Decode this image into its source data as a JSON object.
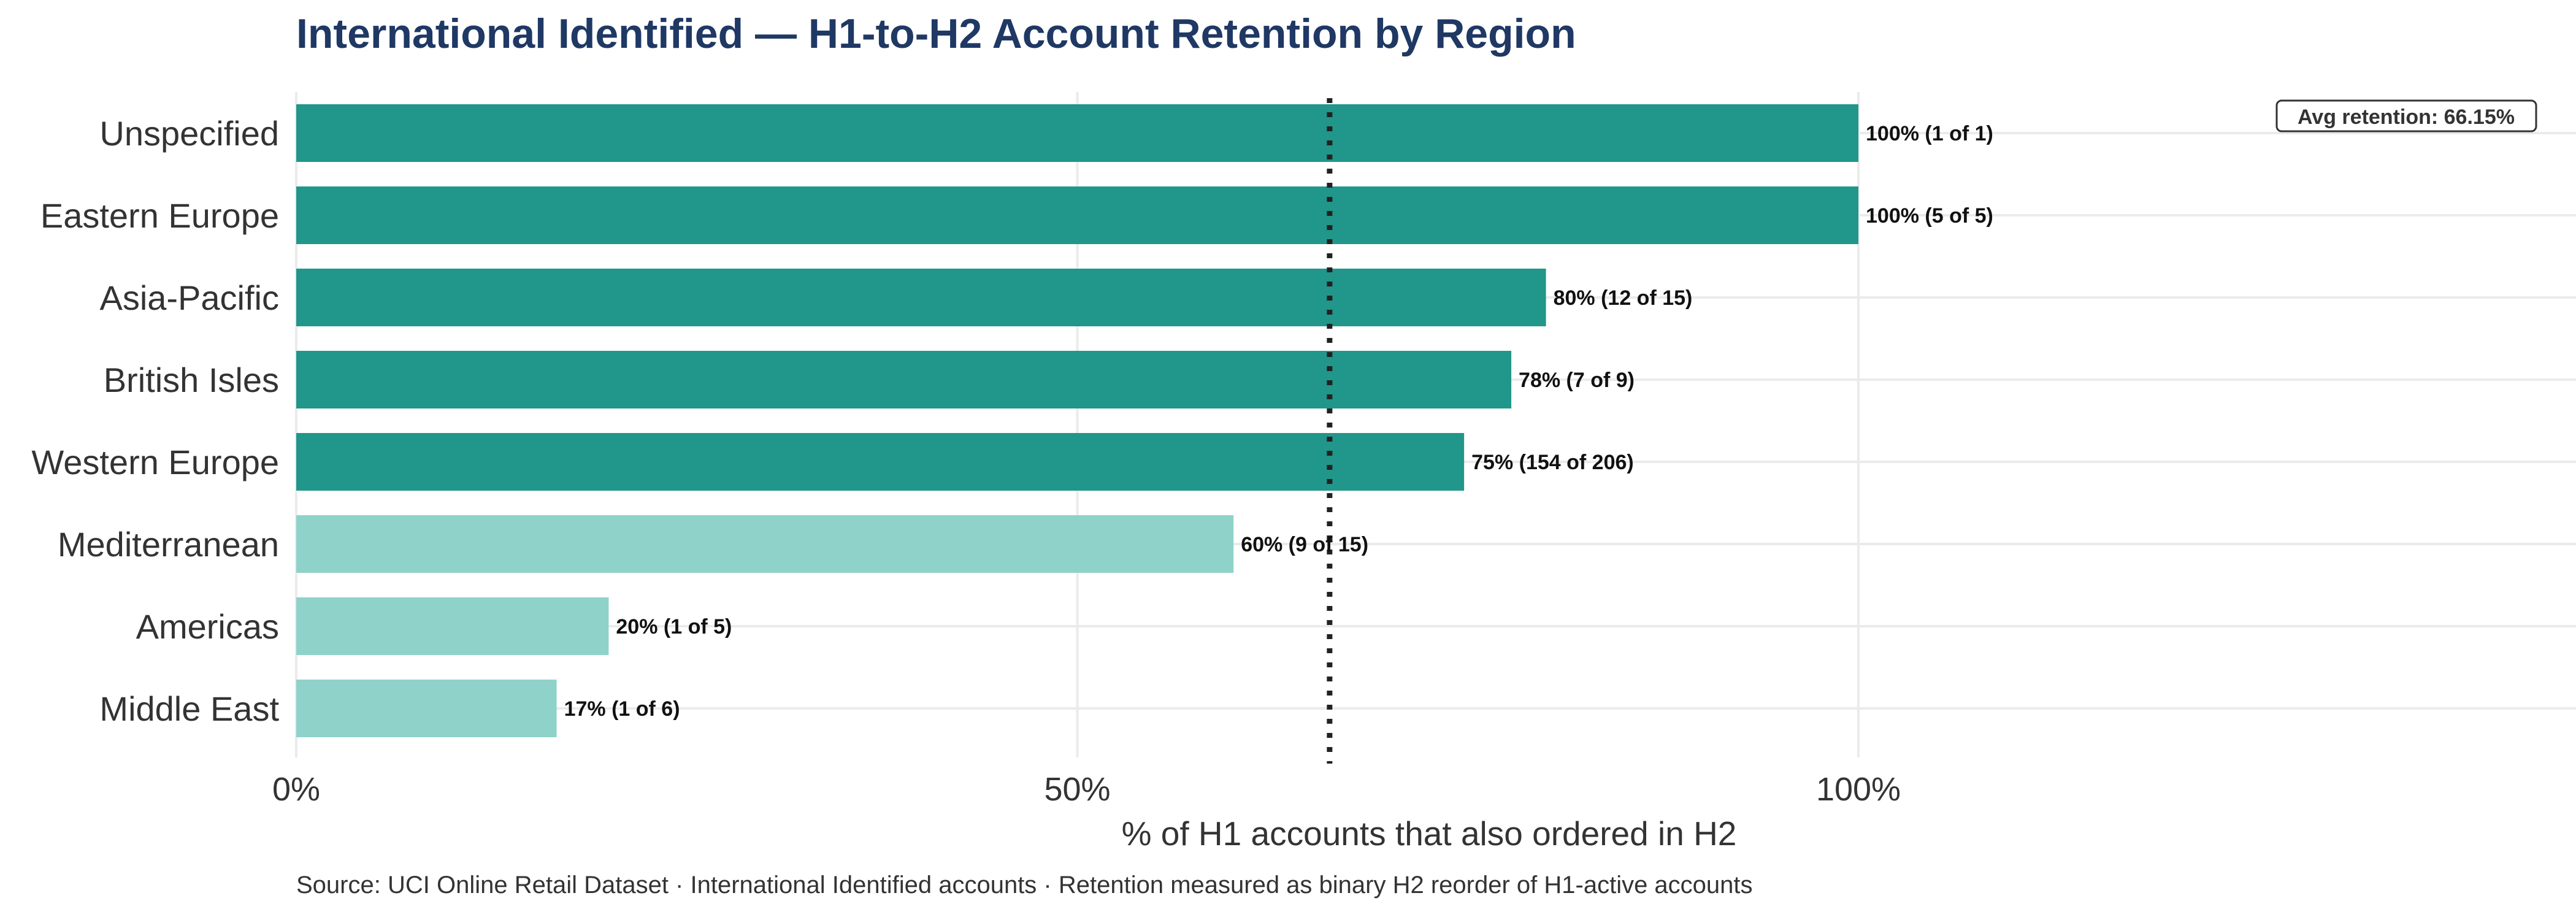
{
  "chart_data": {
    "type": "bar",
    "orientation": "horizontal",
    "title": "International Identified — H1-to-H2 Account Retention by Region",
    "xlabel": "% of H1 accounts that also ordered in H2",
    "ylabel": "",
    "xlim": [
      0,
      1.5
    ],
    "x_ticks": [
      {
        "value": 0,
        "label": "0%"
      },
      {
        "value": 0.5,
        "label": "50%"
      },
      {
        "value": 1.0,
        "label": "100%"
      }
    ],
    "grid": true,
    "categories": [
      "Unspecified",
      "Eastern Europe",
      "Asia-Pacific",
      "British Isles",
      "Western Europe",
      "Mediterranean",
      "Americas",
      "Middle East"
    ],
    "values": [
      1.0,
      1.0,
      0.8,
      0.7778,
      0.7476,
      0.6,
      0.2,
      0.1667
    ],
    "data_labels": [
      "100% (1 of 1)",
      "100% (5 of 5)",
      "80% (12 of 15)",
      "78% (7 of 9)",
      "75% (154 of 206)",
      "60% (9 of 15)",
      "20% (1 of 5)",
      "17% (1 of 6)"
    ],
    "above_average": [
      true,
      true,
      true,
      true,
      true,
      false,
      false,
      false
    ],
    "colors": {
      "above_average": "#21968a",
      "below_average": "#8fd2ca",
      "reference_line": "#222222",
      "title": "#1f3864"
    },
    "reference_line": {
      "value": 0.6615,
      "style": "dotted"
    },
    "annotation": "Avg retention: 66.15%",
    "caption": "Source: UCI Online Retail Dataset · International Identified accounts · Retention measured as binary H2 reorder of H1-active accounts"
  }
}
